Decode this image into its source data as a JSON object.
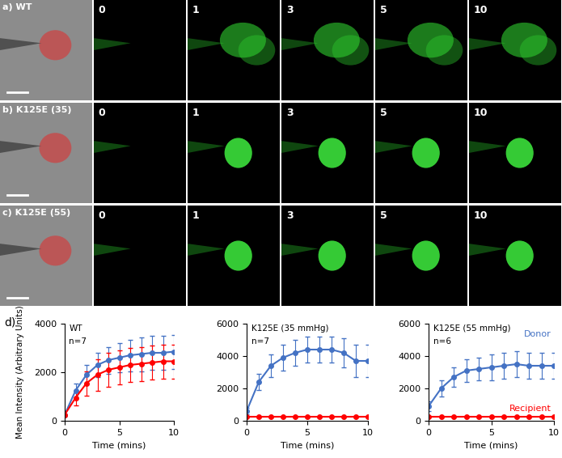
{
  "image_rows": [
    {
      "label": "a)",
      "condition": "WT",
      "times": [
        0,
        1,
        3,
        5,
        10
      ]
    },
    {
      "label": "b)",
      "condition": "K125E (35)",
      "times": [
        0,
        1,
        3,
        5,
        10
      ]
    },
    {
      "label": "c)",
      "condition": "K125E (55)",
      "times": [
        0,
        1,
        3,
        5,
        10
      ]
    }
  ],
  "panel_d": {
    "label": "d)",
    "ylabel": "Mean Intensity (Arbitrary Units)"
  },
  "chart_data": [
    {
      "type": "line",
      "title": "WT",
      "annotation": "n=7",
      "xlabel": "Time (mins)",
      "x": [
        0,
        1,
        2,
        3,
        4,
        5,
        6,
        7,
        8,
        9,
        10
      ],
      "xlim": [
        0,
        10
      ],
      "xticks": [
        0,
        5,
        10
      ],
      "ylim": [
        0,
        4000
      ],
      "yticks": [
        0,
        2000,
        4000
      ],
      "marker": "o",
      "series": [
        {
          "color": "#4472c4",
          "values": [
            250,
            1250,
            1900,
            2300,
            2500,
            2600,
            2700,
            2750,
            2800,
            2800,
            2850
          ],
          "errors": [
            0,
            300,
            400,
            500,
            550,
            600,
            650,
            700,
            700,
            700,
            700
          ]
        },
        {
          "color": "#ff0000",
          "values": [
            250,
            950,
            1550,
            1900,
            2100,
            2200,
            2300,
            2350,
            2400,
            2450,
            2450
          ],
          "errors": [
            0,
            300,
            500,
            650,
            700,
            700,
            700,
            700,
            700,
            700,
            700
          ]
        }
      ]
    },
    {
      "type": "line",
      "title": "K125E (35 mmHg)",
      "annotation": "n=7",
      "xlabel": "Time (mins)",
      "x": [
        0,
        1,
        2,
        3,
        4,
        5,
        6,
        7,
        8,
        9,
        10
      ],
      "xlim": [
        0,
        10
      ],
      "xticks": [
        0,
        5,
        10
      ],
      "ylim": [
        0,
        6000
      ],
      "yticks": [
        0,
        2000,
        4000,
        6000
      ],
      "marker": "o",
      "series": [
        {
          "color": "#4472c4",
          "values": [
            600,
            2400,
            3400,
            3900,
            4200,
            4400,
            4400,
            4400,
            4200,
            3700,
            3700
          ],
          "errors": [
            200,
            500,
            700,
            800,
            800,
            800,
            800,
            800,
            900,
            1000,
            1000
          ]
        },
        {
          "color": "#ff0000",
          "values": [
            250,
            250,
            250,
            250,
            250,
            250,
            250,
            250,
            250,
            250,
            250
          ],
          "errors": [
            0,
            0,
            0,
            0,
            0,
            0,
            0,
            0,
            0,
            0,
            0
          ]
        }
      ]
    },
    {
      "type": "line",
      "title": "K125E (55 mmHg)",
      "annotation": "n=6",
      "xlabel": "Time (mins)",
      "x": [
        0,
        1,
        2,
        3,
        4,
        5,
        6,
        7,
        8,
        9,
        10
      ],
      "xlim": [
        0,
        10
      ],
      "xticks": [
        0,
        5,
        10
      ],
      "ylim": [
        0,
        6000
      ],
      "yticks": [
        0,
        2000,
        4000,
        6000
      ],
      "marker": "o",
      "series": [
        {
          "name": "Donor",
          "color": "#4472c4",
          "values": [
            900,
            2000,
            2700,
            3100,
            3200,
            3300,
            3400,
            3500,
            3400,
            3400,
            3400
          ],
          "errors": [
            300,
            500,
            600,
            700,
            700,
            800,
            800,
            800,
            800,
            800,
            800
          ]
        },
        {
          "name": "Recipient",
          "color": "#ff0000",
          "values": [
            250,
            250,
            250,
            250,
            250,
            250,
            250,
            250,
            250,
            250,
            250
          ],
          "errors": [
            0,
            0,
            0,
            0,
            0,
            0,
            0,
            0,
            0,
            0,
            0
          ]
        }
      ]
    }
  ]
}
